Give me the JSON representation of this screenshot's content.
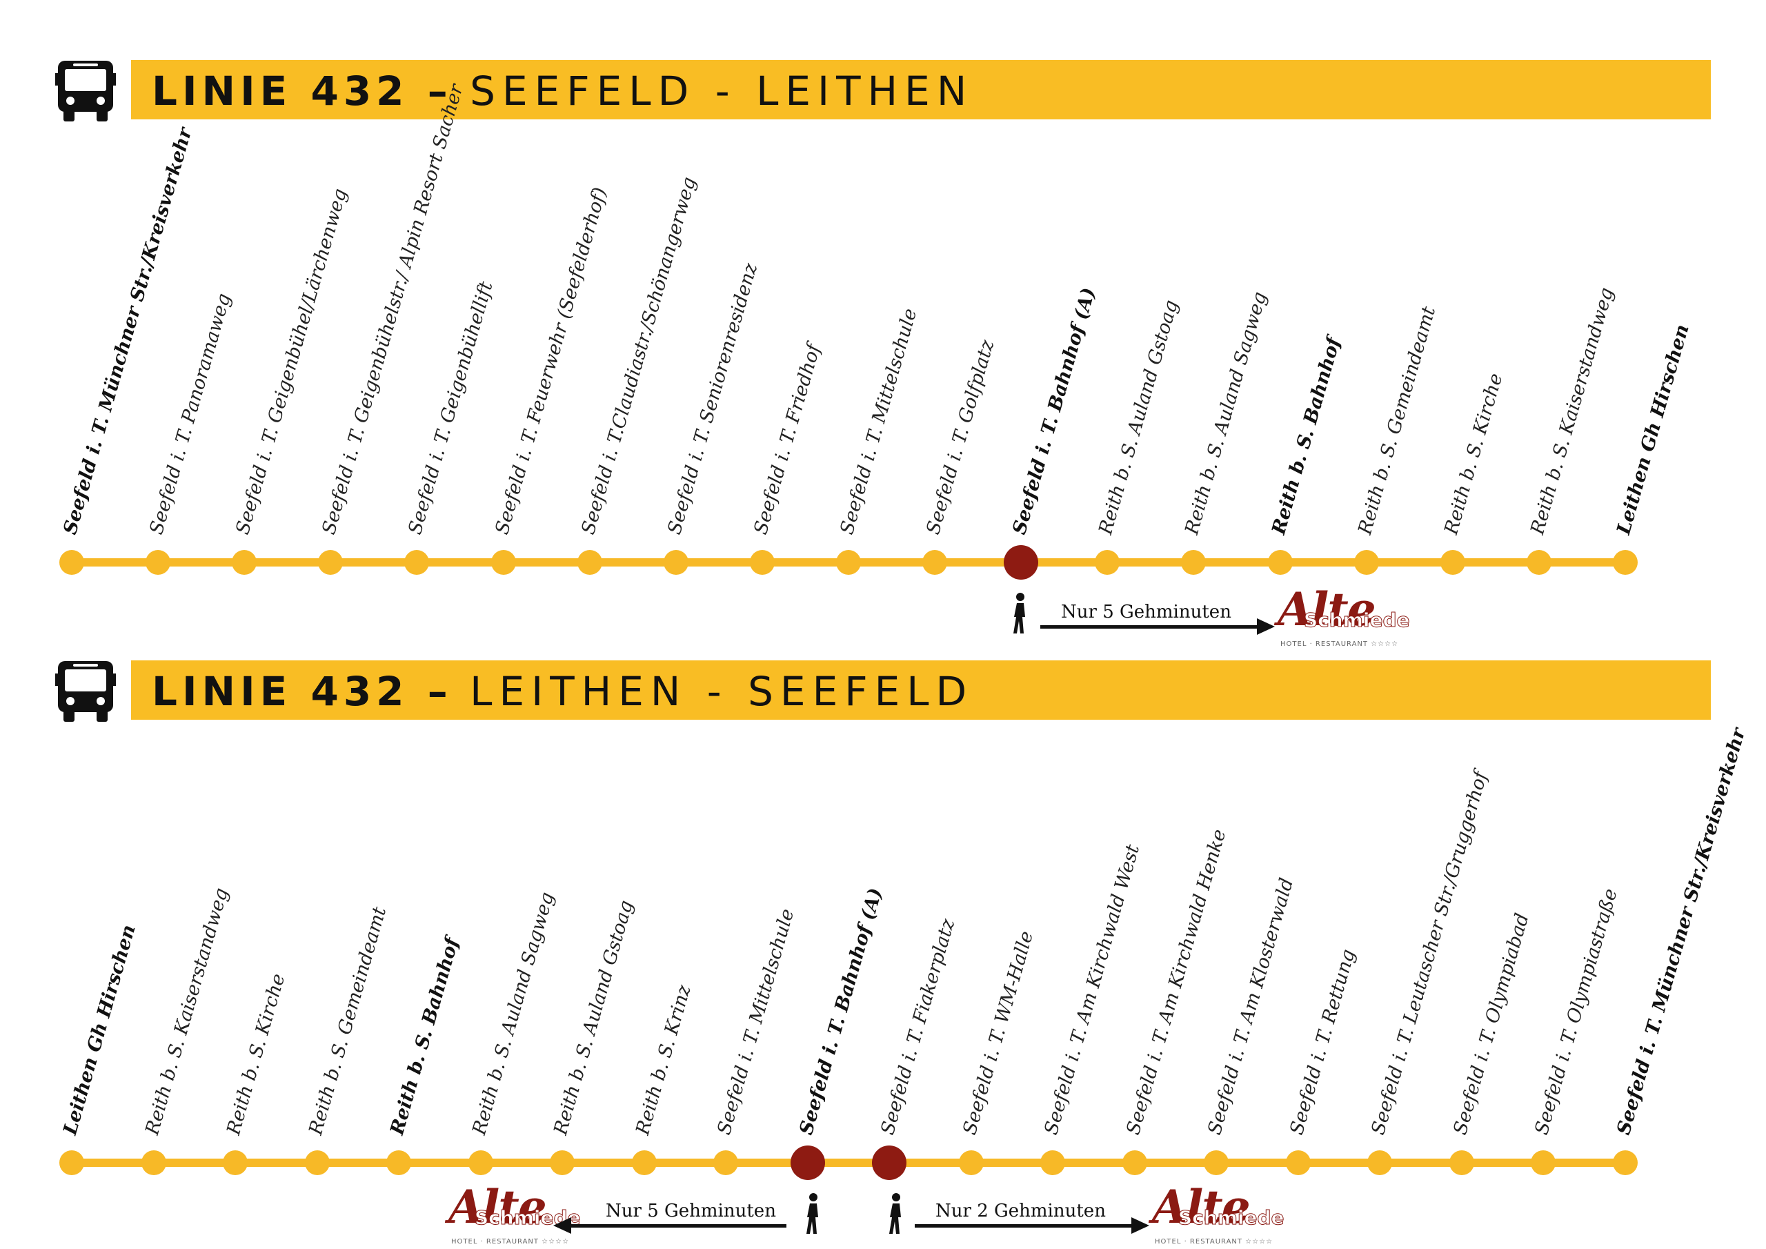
{
  "theme": {
    "accent": "#f9bd24",
    "transfer_stop": "#8e1b12",
    "logo_red": "#8b1a13"
  },
  "sections": [
    {
      "line": "LINIE 432 –",
      "route": "SEEFELD - LEITHEN",
      "bus_icon": "bus-icon",
      "stops": [
        {
          "name": "Seefeld i. T. Münchner  Str./Kreisverkehr",
          "bold": true
        },
        {
          "name": "Seefeld i. T. Panoramaweg"
        },
        {
          "name": "Seefeld i. T. Geigenbühel/Lärchenweg"
        },
        {
          "name": "Seefeld i. T. Geigenbühelstr./ Alpin Resort Sacher"
        },
        {
          "name": "Seefeld i. T. Geigenbühellift"
        },
        {
          "name": "Seefeld i. T. Feuerwehr (Seefelderhof)"
        },
        {
          "name": "Seefeld i. T.Claudiastr./Schönangerweg"
        },
        {
          "name": "Seefeld i. T. Seniorenresidenz"
        },
        {
          "name": "Seefeld i. T. Friedhof"
        },
        {
          "name": "Seefeld i. T. Mittelschule"
        },
        {
          "name": "Seefeld i. T. Golfplatz"
        },
        {
          "name": "Seefeld i. T. Bahnhof (A)",
          "bold": true,
          "transfer": true
        },
        {
          "name": "Reith b. S. Auland Gstoag"
        },
        {
          "name": "Reith b. S. Auland Sagweg"
        },
        {
          "name": "Reith b. S. Bahnhof",
          "bold": true
        },
        {
          "name": "Reith b. S. Gemeindeamt"
        },
        {
          "name": "Reith b. S. Kirche"
        },
        {
          "name": "Reith b. S. Kaiserstandweg"
        },
        {
          "name": "Leithen Gh Hirschen",
          "bold": true
        }
      ],
      "walks": [
        {
          "text": "Nur 5 Gehminuten",
          "direction": "right",
          "logo": "Alte Schmiede"
        }
      ]
    },
    {
      "line": "LINIE 432 –",
      "route": "LEITHEN - SEEFELD",
      "bus_icon": "bus-icon",
      "stops": [
        {
          "name": "Leithen Gh Hirschen",
          "bold": true
        },
        {
          "name": "Reith b. S. Kaiserstandweg"
        },
        {
          "name": "Reith b. S. Kirche"
        },
        {
          "name": "Reith b. S. Gemeindeamt"
        },
        {
          "name": "Reith b. S. Bahnhof",
          "bold": true
        },
        {
          "name": "Reith b. S. Auland Sagweg"
        },
        {
          "name": "Reith b. S. Auland Gstoag"
        },
        {
          "name": "Reith b. S. Krinz"
        },
        {
          "name": "Seefeld i. T. Mittelschule"
        },
        {
          "name": "Seefeld i. T. Bahnhof (A)",
          "bold": true,
          "transfer": true
        },
        {
          "name": "Seefeld i. T. Fiakerplatz",
          "transfer": true
        },
        {
          "name": "Seefeld i. T. WM-Halle"
        },
        {
          "name": "Seefeld i. T. Am Kirchwald West"
        },
        {
          "name": "Seefeld i. T. Am Kirchwald Henke"
        },
        {
          "name": "Seefeld i. T. Am Klosterwald"
        },
        {
          "name": "Seefeld i. T. Rettung"
        },
        {
          "name": "Seefeld i. T. Leutascher Str./Gruggerhof"
        },
        {
          "name": "Seefeld i. T. Olympiabad"
        },
        {
          "name": "Seefeld i. T. Olympiastraße"
        },
        {
          "name": "Seefeld i. T. Münchner Str./Kreisverkehr",
          "bold": true
        }
      ],
      "walks": [
        {
          "text": "Nur 5 Gehminuten",
          "direction": "left",
          "logo": "Alte Schmiede"
        },
        {
          "text": "Nur 2 Gehminuten",
          "direction": "right",
          "logo": "Alte Schmiede"
        }
      ]
    }
  ],
  "logo": {
    "main": "Alte",
    "sub": "Schmiede",
    "tag": "HOTEL · RESTAURANT ☆☆☆☆"
  }
}
